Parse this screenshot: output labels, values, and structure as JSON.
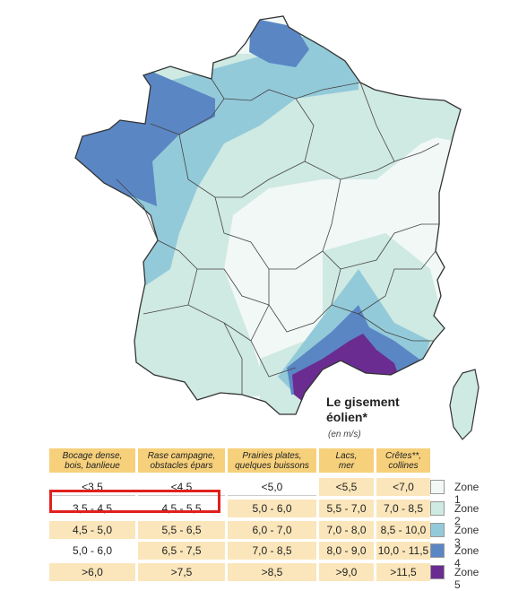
{
  "legend": {
    "title_line1": "Le gisement",
    "title_line2": "éolien*",
    "unit": "(en m/s)"
  },
  "table": {
    "headers": [
      {
        "line1": "Bocage dense,",
        "line2": "bois, banlieue"
      },
      {
        "line1": "Rase campagne,",
        "line2": "obstacles épars"
      },
      {
        "line1": "Prairies plates,",
        "line2": "quelques buissons"
      },
      {
        "line1": "Lacs,",
        "line2": "mer"
      },
      {
        "line1": "Crêtes**,",
        "line2": "collines"
      }
    ],
    "rows": [
      {
        "zone": "Zone 1",
        "color": "#f1f8f6",
        "values": [
          "<3,5",
          "<4,5",
          "<5,0",
          "<5,5",
          "<7,0"
        ]
      },
      {
        "zone": "Zone 2",
        "color": "#cfe9e3",
        "values": [
          "3,5 - 4,5",
          "4,5 - 5,5",
          "5,0 - 6,0",
          "5,5 - 7,0",
          "7,0 - 8,5"
        ]
      },
      {
        "zone": "Zone 3",
        "color": "#93cad9",
        "values": [
          "4,5 - 5,0",
          "5,5 - 6,5",
          "6,0 - 7,0",
          "7,0 - 8,0",
          "8,5 - 10,0"
        ]
      },
      {
        "zone": "Zone 4",
        "color": "#5b86c4",
        "values": [
          "5,0 - 6,0",
          "6,5 - 7,5",
          "7,0 - 8,5",
          "8,0 - 9,0",
          "10,0 - 11,5"
        ]
      },
      {
        "zone": "Zone 5",
        "color": "#6b2c91",
        "values": [
          ">6,0",
          ">7,5",
          ">8,5",
          ">9,0",
          ">11,5"
        ]
      }
    ],
    "highlighted_row": 1,
    "highlighted_columns": [
      0,
      1
    ]
  },
  "colors": {
    "zone1": "#f1f8f6",
    "zone2": "#cfe9e3",
    "zone3": "#93cad9",
    "zone4": "#5b86c4",
    "zone5": "#6b2c91",
    "header_bg": "#f6d07b",
    "cell_bg": "#fbe6bb",
    "highlight": "#e0201e"
  }
}
